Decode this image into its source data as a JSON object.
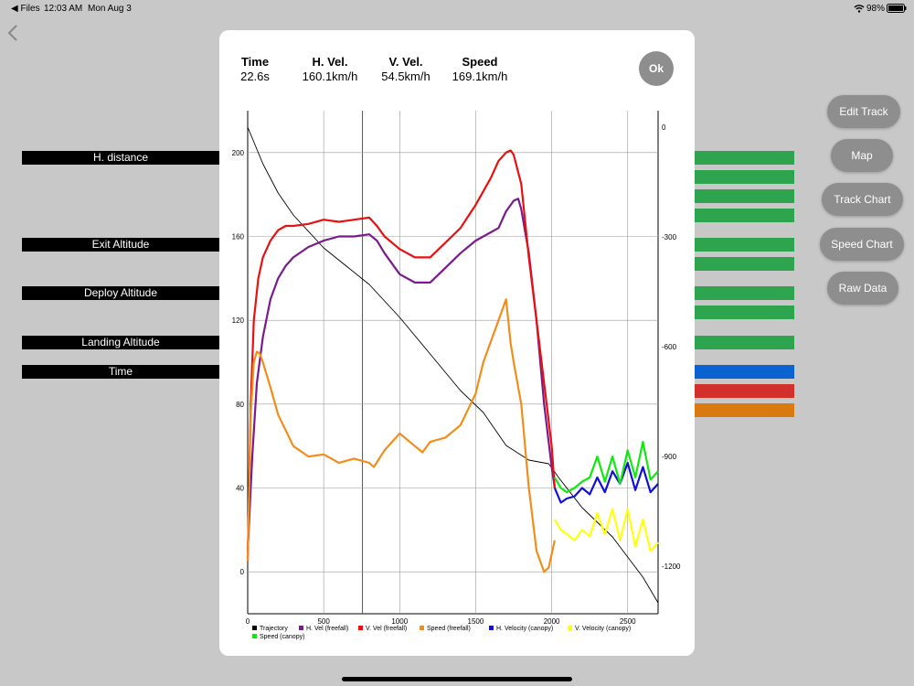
{
  "status": {
    "back_app": "◀ Files",
    "time": "12:03 AM",
    "date": "Mon Aug 3",
    "battery": "98%"
  },
  "labels": [
    {
      "text": "H. distance",
      "top": 165
    },
    {
      "text": "Exit Altitude",
      "top": 260
    },
    {
      "text": "Deploy Altitude",
      "top": 313
    },
    {
      "text": "Landing Altitude",
      "top": 367
    },
    {
      "text": "Time",
      "top": 399
    }
  ],
  "side_buttons": [
    "Edit Track",
    "Map",
    "Track Chart",
    "Speed Chart",
    "Raw Data"
  ],
  "metrics": [
    {
      "label": "Time",
      "value": "22.6s"
    },
    {
      "label": "H. Vel.",
      "value": "160.1km/h"
    },
    {
      "label": "V. Vel.",
      "value": "54.5km/h"
    },
    {
      "label": "Speed",
      "value": "169.1km/h"
    }
  ],
  "ok_label": "Ok",
  "colors": {
    "green": "#2ea44f",
    "blue": "#0a63d0",
    "red": "#d2302a",
    "orange": "#d97a10",
    "trajectory": "#000000",
    "hvel_freefall": "#7b1a8c",
    "vvel_freefall": "#f28c1a",
    "speed_freefall": "#e81010",
    "hvel_canopy": "#1010d8",
    "vvel_canopy": "#ffff10",
    "speed_canopy": "#10e810"
  },
  "chart_data": {
    "type": "line",
    "x_ticks": [
      0,
      500,
      1000,
      1500,
      2000,
      2500
    ],
    "y_left_ticks": [
      0,
      40,
      80,
      120,
      160,
      200
    ],
    "y_right_ticks": [
      0,
      -300,
      -600,
      -900,
      -1200
    ],
    "xlim": [
      0,
      2700
    ],
    "ylim_left": [
      -20,
      220
    ],
    "ylim_right": [
      -1330,
      45
    ],
    "legend": [
      "Trajectory",
      "H. Vel (freefall)",
      "V. Vel (freefall)",
      "Speed (freefall)",
      "H. Velocity (canopy)",
      "V. Velocity (canopy)",
      "Speed (canopy)"
    ],
    "series": [
      {
        "name": "Trajectory",
        "axis": "right",
        "color": "#000000",
        "x": [
          0,
          100,
          200,
          300,
          500,
          800,
          1000,
          1200,
          1400,
          1550,
          1700,
          1850,
          1980,
          2050,
          2200,
          2400,
          2600,
          2700
        ],
        "y": [
          0,
          -100,
          -180,
          -240,
          -330,
          -430,
          -520,
          -620,
          -720,
          -780,
          -870,
          -910,
          -920,
          -960,
          -1040,
          -1120,
          -1230,
          -1300
        ]
      },
      {
        "name": "H. Vel (freefall)",
        "axis": "left",
        "color": "#7b1a8c",
        "x": [
          0,
          30,
          60,
          100,
          150,
          200,
          250,
          300,
          400,
          500,
          600,
          700,
          800,
          850,
          900,
          1000,
          1100,
          1200,
          1300,
          1400,
          1500,
          1600,
          1650,
          1700,
          1750,
          1780,
          1800,
          1850,
          1900,
          1950,
          2000,
          2020
        ],
        "y": [
          10,
          55,
          90,
          112,
          130,
          140,
          146,
          150,
          155,
          158,
          160,
          160,
          161,
          158,
          152,
          142,
          138,
          138,
          145,
          152,
          158,
          162,
          164,
          172,
          177,
          178,
          173,
          152,
          120,
          80,
          50,
          40
        ]
      },
      {
        "name": "Speed (freefall)",
        "axis": "left",
        "color": "#e81010",
        "x": [
          0,
          20,
          40,
          70,
          100,
          150,
          200,
          250,
          300,
          400,
          500,
          600,
          700,
          800,
          850,
          900,
          1000,
          1100,
          1200,
          1300,
          1400,
          1500,
          1600,
          1650,
          1700,
          1730,
          1750,
          1800,
          1850,
          1900,
          1950,
          2000,
          2020
        ],
        "y": [
          5,
          80,
          120,
          140,
          150,
          158,
          163,
          165,
          165,
          166,
          168,
          167,
          168,
          169,
          165,
          160,
          154,
          150,
          150,
          157,
          164,
          175,
          188,
          196,
          200,
          201,
          199,
          185,
          150,
          120,
          90,
          60,
          40
        ]
      },
      {
        "name": "V. Vel (freefall)",
        "axis": "left",
        "color": "#f28c1a",
        "x": [
          0,
          20,
          40,
          60,
          80,
          100,
          150,
          200,
          300,
          400,
          500,
          600,
          700,
          800,
          830,
          900,
          950,
          1000,
          1100,
          1150,
          1200,
          1300,
          1400,
          1500,
          1550,
          1600,
          1650,
          1700,
          1730,
          1750,
          1800,
          1850,
          1900,
          1950,
          1980,
          2020
        ],
        "y": [
          5,
          75,
          100,
          105,
          104,
          100,
          88,
          75,
          60,
          55,
          56,
          52,
          54,
          52,
          50,
          58,
          62,
          66,
          60,
          57,
          62,
          64,
          70,
          85,
          100,
          110,
          120,
          130,
          109,
          100,
          80,
          40,
          10,
          0,
          2,
          15
        ]
      },
      {
        "name": "H. Velocity (canopy)",
        "axis": "left",
        "color": "#1010d8",
        "x": [
          2020,
          2060,
          2100,
          2150,
          2200,
          2250,
          2300,
          2350,
          2400,
          2450,
          2500,
          2550,
          2600,
          2650,
          2700
        ],
        "y": [
          40,
          33,
          35,
          36,
          40,
          37,
          45,
          38,
          48,
          42,
          52,
          39,
          50,
          38,
          42
        ]
      },
      {
        "name": "V. Velocity (canopy)",
        "axis": "left",
        "color": "#ffff10",
        "x": [
          2020,
          2060,
          2100,
          2150,
          2200,
          2250,
          2300,
          2350,
          2400,
          2450,
          2500,
          2550,
          2600,
          2650,
          2700
        ],
        "y": [
          25,
          20,
          18,
          15,
          20,
          17,
          28,
          18,
          30,
          15,
          30,
          12,
          25,
          10,
          14
        ]
      },
      {
        "name": "Speed (canopy)",
        "axis": "left",
        "color": "#10e810",
        "x": [
          2020,
          2060,
          2100,
          2150,
          2200,
          2250,
          2300,
          2350,
          2400,
          2450,
          2500,
          2550,
          2600,
          2650,
          2700
        ],
        "y": [
          45,
          40,
          38,
          40,
          43,
          45,
          55,
          43,
          55,
          42,
          58,
          45,
          62,
          44,
          48
        ]
      }
    ]
  }
}
